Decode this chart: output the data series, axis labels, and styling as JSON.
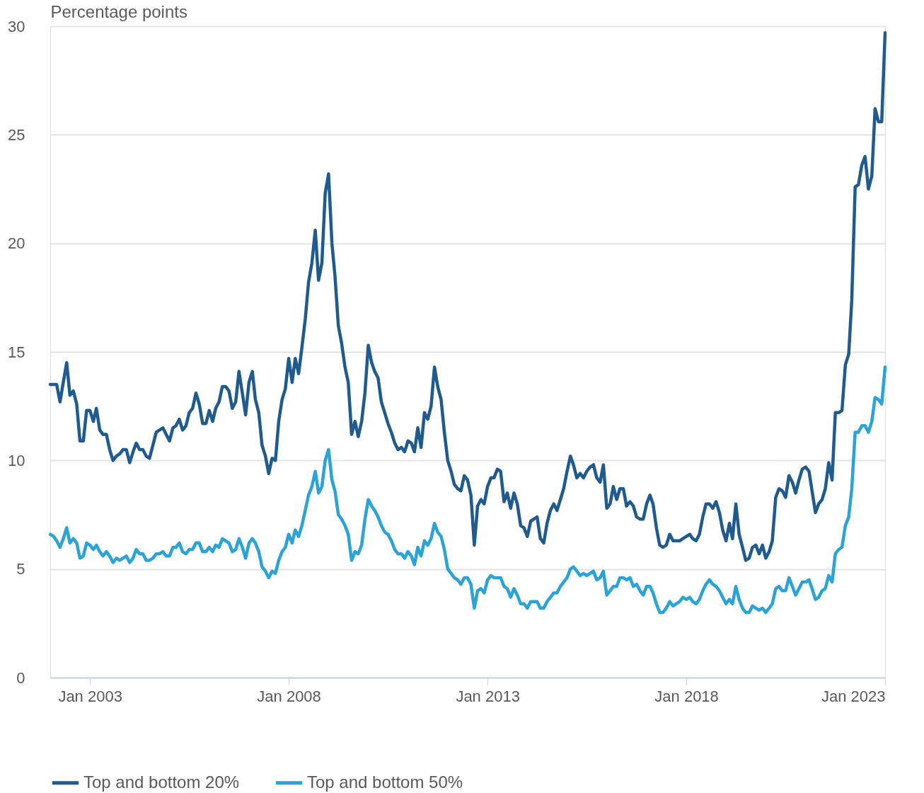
{
  "chart_data": {
    "type": "line",
    "ylabel": "Percentage points",
    "x": [
      "2002-01",
      "2002-02",
      "2002-03",
      "2002-04",
      "2002-05",
      "2002-06",
      "2002-07",
      "2002-08",
      "2002-09",
      "2002-10",
      "2002-11",
      "2002-12",
      "2003-01",
      "2003-02",
      "2003-03",
      "2003-04",
      "2003-05",
      "2003-06",
      "2003-07",
      "2003-08",
      "2003-09",
      "2003-10",
      "2003-11",
      "2003-12",
      "2004-01",
      "2004-02",
      "2004-03",
      "2004-04",
      "2004-05",
      "2004-06",
      "2004-07",
      "2004-08",
      "2004-09",
      "2004-10",
      "2004-11",
      "2004-12",
      "2005-01",
      "2005-02",
      "2005-03",
      "2005-04",
      "2005-05",
      "2005-06",
      "2005-07",
      "2005-08",
      "2005-09",
      "2005-10",
      "2005-11",
      "2005-12",
      "2006-01",
      "2006-02",
      "2006-03",
      "2006-04",
      "2006-05",
      "2006-06",
      "2006-07",
      "2006-08",
      "2006-09",
      "2006-10",
      "2006-11",
      "2006-12",
      "2007-01",
      "2007-02",
      "2007-03",
      "2007-04",
      "2007-05",
      "2007-06",
      "2007-07",
      "2007-08",
      "2007-09",
      "2007-10",
      "2007-11",
      "2007-12",
      "2008-01",
      "2008-02",
      "2008-03",
      "2008-04",
      "2008-05",
      "2008-06",
      "2008-07",
      "2008-08",
      "2008-09",
      "2008-10",
      "2008-11",
      "2008-12",
      "2009-01",
      "2009-02",
      "2009-03",
      "2009-04",
      "2009-05",
      "2009-06",
      "2009-07",
      "2009-08",
      "2009-09",
      "2009-10",
      "2009-11",
      "2009-12",
      "2010-01",
      "2010-02",
      "2010-03",
      "2010-04",
      "2010-05",
      "2010-06",
      "2010-07",
      "2010-08",
      "2010-09",
      "2010-10",
      "2010-11",
      "2010-12",
      "2011-01",
      "2011-02",
      "2011-03",
      "2011-04",
      "2011-05",
      "2011-06",
      "2011-07",
      "2011-08",
      "2011-09",
      "2011-10",
      "2011-11",
      "2011-12",
      "2012-01",
      "2012-02",
      "2012-03",
      "2012-04",
      "2012-05",
      "2012-06",
      "2012-07",
      "2012-08",
      "2012-09",
      "2012-10",
      "2012-11",
      "2012-12",
      "2013-01",
      "2013-02",
      "2013-03",
      "2013-04",
      "2013-05",
      "2013-06",
      "2013-07",
      "2013-08",
      "2013-09",
      "2013-10",
      "2013-11",
      "2013-12",
      "2014-01",
      "2014-02",
      "2014-03",
      "2014-04",
      "2014-05",
      "2014-06",
      "2014-07",
      "2014-08",
      "2014-09",
      "2014-10",
      "2014-11",
      "2014-12",
      "2015-01",
      "2015-02",
      "2015-03",
      "2015-04",
      "2015-05",
      "2015-06",
      "2015-07",
      "2015-08",
      "2015-09",
      "2015-10",
      "2015-11",
      "2015-12",
      "2016-01",
      "2016-02",
      "2016-03",
      "2016-04",
      "2016-05",
      "2016-06",
      "2016-07",
      "2016-08",
      "2016-09",
      "2016-10",
      "2016-11",
      "2016-12",
      "2017-01",
      "2017-02",
      "2017-03",
      "2017-04",
      "2017-05",
      "2017-06",
      "2017-07",
      "2017-08",
      "2017-09",
      "2017-10",
      "2017-11",
      "2017-12",
      "2018-01",
      "2018-02",
      "2018-03",
      "2018-04",
      "2018-05",
      "2018-06",
      "2018-07",
      "2018-08",
      "2018-09",
      "2018-10",
      "2018-11",
      "2018-12",
      "2019-01",
      "2019-02",
      "2019-03",
      "2019-04",
      "2019-05",
      "2019-06",
      "2019-07",
      "2019-08",
      "2019-09",
      "2019-10",
      "2019-11",
      "2019-12",
      "2020-01",
      "2020-02",
      "2020-03",
      "2020-04",
      "2020-05",
      "2020-06",
      "2020-07",
      "2020-08",
      "2020-09",
      "2020-10",
      "2020-11",
      "2020-12",
      "2021-01",
      "2021-02",
      "2021-03",
      "2021-04",
      "2021-05",
      "2021-06",
      "2021-07",
      "2021-08",
      "2021-09",
      "2021-10",
      "2021-11",
      "2021-12",
      "2022-01",
      "2022-02",
      "2022-03",
      "2022-04",
      "2022-05",
      "2022-06",
      "2022-07",
      "2022-08",
      "2022-09",
      "2022-10",
      "2022-11",
      "2022-12",
      "2023-01"
    ],
    "series": [
      {
        "name": "Top and bottom 20%",
        "color": "#1f5b8e",
        "values": [
          13.5,
          13.5,
          13.5,
          12.7,
          13.6,
          14.5,
          13.0,
          13.2,
          12.6,
          10.9,
          10.9,
          12.3,
          12.3,
          11.8,
          12.4,
          11.4,
          11.2,
          11.2,
          10.5,
          10.0,
          10.2,
          10.3,
          10.5,
          10.5,
          9.9,
          10.4,
          10.8,
          10.5,
          10.5,
          10.2,
          10.1,
          10.7,
          11.3,
          11.4,
          11.5,
          11.2,
          10.9,
          11.5,
          11.6,
          11.9,
          11.4,
          11.6,
          12.2,
          12.4,
          13.1,
          12.6,
          11.7,
          11.7,
          12.3,
          11.8,
          12.4,
          12.7,
          13.4,
          13.4,
          13.2,
          12.4,
          12.7,
          14.1,
          13.1,
          12.1,
          13.6,
          14.1,
          12.8,
          12.2,
          10.7,
          10.2,
          9.4,
          10.1,
          10.0,
          11.8,
          12.8,
          13.3,
          14.7,
          13.6,
          14.7,
          14.0,
          15.2,
          16.5,
          18.2,
          19.1,
          20.6,
          18.3,
          19.1,
          22.3,
          23.2,
          20.0,
          18.5,
          16.2,
          15.4,
          14.3,
          13.6,
          11.2,
          11.8,
          11.1,
          11.8,
          13.1,
          15.3,
          14.5,
          14.1,
          13.8,
          12.7,
          12.2,
          11.7,
          11.3,
          10.8,
          10.5,
          10.6,
          10.4,
          10.9,
          10.8,
          10.4,
          11.5,
          10.6,
          12.2,
          11.9,
          12.5,
          14.3,
          13.4,
          12.8,
          11.3,
          10.0,
          9.5,
          8.9,
          8.7,
          8.6,
          9.3,
          9.1,
          8.4,
          6.1,
          7.9,
          8.2,
          8.0,
          8.8,
          9.2,
          9.2,
          9.6,
          9.5,
          8.1,
          8.5,
          7.8,
          8.5,
          8.0,
          7.0,
          6.9,
          6.5,
          7.2,
          7.3,
          7.4,
          6.4,
          6.2,
          7.1,
          7.7,
          8.0,
          7.7,
          8.2,
          8.7,
          9.5,
          10.2,
          9.8,
          9.2,
          9.4,
          9.2,
          9.5,
          9.7,
          9.8,
          9.2,
          9.0,
          9.8,
          7.8,
          8.0,
          8.8,
          8.2,
          8.7,
          8.7,
          7.9,
          8.1,
          7.9,
          7.4,
          7.3,
          7.3,
          8.0,
          8.4,
          8.0,
          6.9,
          6.1,
          6.0,
          6.1,
          6.6,
          6.3,
          6.3,
          6.3,
          6.4,
          6.5,
          6.6,
          6.4,
          6.3,
          6.6,
          7.4,
          8.0,
          8.0,
          7.8,
          8.1,
          7.6,
          6.8,
          6.3,
          7.1,
          6.4,
          8.0,
          6.6,
          6.0,
          5.4,
          5.5,
          6.0,
          6.1,
          5.7,
          6.1,
          5.5,
          5.8,
          6.3,
          8.3,
          8.7,
          8.6,
          8.3,
          9.3,
          9.0,
          8.5,
          9.1,
          9.6,
          9.7,
          9.5,
          8.6,
          7.6,
          8.0,
          8.2,
          8.7,
          9.9,
          9.1,
          12.2,
          12.2,
          12.3,
          14.4,
          14.9,
          17.4,
          22.6,
          22.7,
          23.6,
          24.0,
          22.5,
          23.1,
          26.2,
          25.6,
          25.6,
          29.7
        ]
      },
      {
        "name": "Top and bottom 50%",
        "color": "#2ba3d6",
        "values": [
          6.6,
          6.5,
          6.3,
          6.0,
          6.4,
          6.9,
          6.2,
          6.4,
          6.2,
          5.5,
          5.6,
          6.2,
          6.1,
          5.9,
          6.1,
          5.8,
          5.6,
          5.8,
          5.6,
          5.3,
          5.5,
          5.4,
          5.5,
          5.6,
          5.3,
          5.5,
          5.9,
          5.7,
          5.7,
          5.4,
          5.4,
          5.5,
          5.7,
          5.7,
          5.8,
          5.6,
          5.6,
          6.0,
          6.0,
          6.2,
          5.8,
          5.7,
          5.9,
          5.9,
          6.2,
          6.2,
          5.8,
          5.8,
          6.0,
          5.8,
          6.1,
          6.0,
          6.4,
          6.3,
          6.2,
          5.8,
          5.9,
          6.4,
          6.0,
          5.5,
          6.2,
          6.4,
          6.2,
          5.8,
          5.1,
          4.9,
          4.6,
          4.9,
          4.8,
          5.4,
          5.8,
          6.0,
          6.6,
          6.2,
          6.8,
          6.5,
          7.0,
          7.7,
          8.4,
          8.8,
          9.5,
          8.5,
          8.8,
          10.0,
          10.5,
          9.1,
          8.6,
          7.5,
          7.3,
          7.0,
          6.6,
          5.4,
          5.8,
          5.7,
          6.1,
          7.3,
          8.2,
          7.9,
          7.7,
          7.4,
          7.0,
          6.7,
          6.6,
          6.3,
          5.9,
          5.7,
          5.7,
          5.5,
          5.8,
          5.6,
          5.2,
          6.0,
          5.6,
          6.3,
          6.1,
          6.4,
          7.1,
          6.7,
          6.5,
          5.9,
          5.0,
          4.8,
          4.6,
          4.5,
          4.3,
          4.6,
          4.6,
          4.3,
          3.2,
          4.0,
          4.1,
          3.9,
          4.5,
          4.7,
          4.6,
          4.6,
          4.6,
          4.2,
          4.1,
          3.7,
          4.1,
          3.8,
          3.4,
          3.4,
          3.2,
          3.5,
          3.5,
          3.5,
          3.2,
          3.2,
          3.5,
          3.7,
          3.9,
          3.9,
          4.2,
          4.4,
          4.6,
          5.0,
          5.1,
          4.9,
          4.7,
          4.8,
          4.7,
          4.8,
          4.9,
          4.5,
          4.6,
          4.9,
          3.8,
          4.0,
          4.2,
          4.2,
          4.6,
          4.6,
          4.5,
          4.6,
          4.2,
          4.3,
          4.0,
          3.8,
          4.2,
          4.2,
          3.9,
          3.4,
          3.0,
          3.0,
          3.2,
          3.5,
          3.3,
          3.4,
          3.5,
          3.7,
          3.6,
          3.7,
          3.5,
          3.4,
          3.6,
          4.0,
          4.3,
          4.5,
          4.3,
          4.2,
          4.0,
          3.7,
          3.4,
          3.6,
          3.4,
          4.2,
          3.6,
          3.2,
          3.0,
          3.0,
          3.3,
          3.2,
          3.1,
          3.2,
          3.0,
          3.2,
          3.4,
          4.1,
          4.2,
          4.0,
          4.0,
          4.6,
          4.2,
          3.8,
          4.1,
          4.4,
          4.4,
          4.5,
          4.1,
          3.6,
          3.7,
          4.0,
          4.1,
          4.7,
          4.4,
          5.7,
          5.9,
          6.0,
          7.0,
          7.4,
          8.7,
          11.3,
          11.3,
          11.6,
          11.6,
          11.3,
          11.8,
          12.9,
          12.8,
          12.6,
          14.3
        ]
      }
    ],
    "xlim": [
      "2002-01",
      "2023-01"
    ],
    "xticks": [
      {
        "value": "2003-01",
        "label": "Jan 2003"
      },
      {
        "value": "2008-01",
        "label": "Jan 2008"
      },
      {
        "value": "2013-01",
        "label": "Jan 2013"
      },
      {
        "value": "2018-01",
        "label": "Jan 2018"
      },
      {
        "value": "2023-01",
        "label": "Jan 2023"
      }
    ],
    "ylim": [
      0,
      30
    ],
    "yticks": [
      0,
      5,
      10,
      15,
      20,
      25,
      30
    ],
    "grid": "y",
    "legend": "bottom left",
    "marker": "none",
    "line_style": "solid"
  }
}
